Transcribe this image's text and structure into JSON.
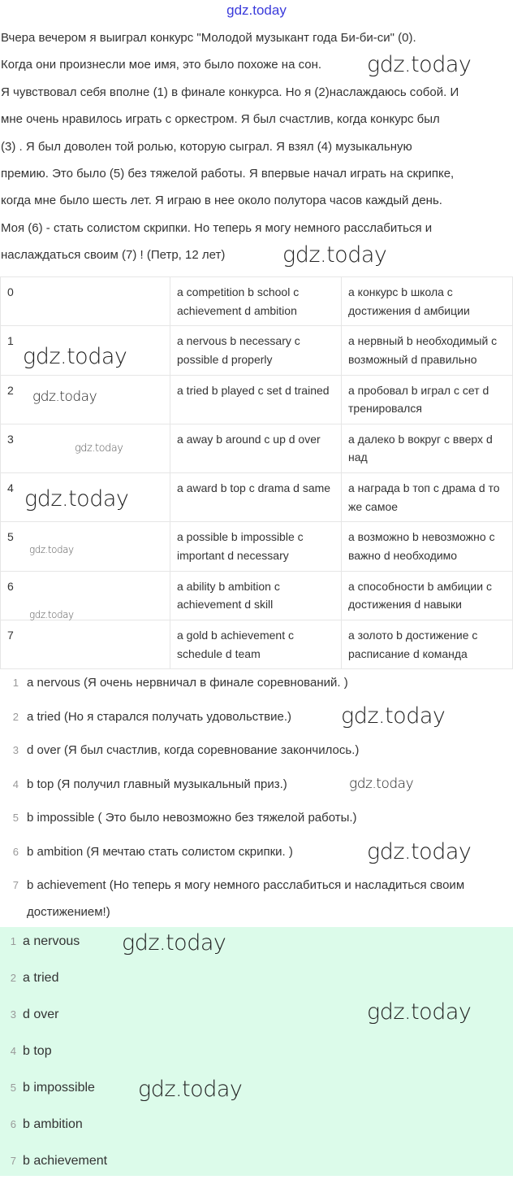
{
  "watermark": "gdz.today",
  "top_watermark": "gdz.today",
  "passage": "Вчера вечером я выиграл конкурс \"Молодой музыкант года Би-би-си\" (0). Когда они произнесли мое имя, это было похоже на сон. Я чувствовал себя вполне (1) в финале конкурса. Но я (2)наслаждаюсь собой. И мне очень нравилось играть с оркестром. Я был счастлив, когда конкурс был (3) . Я был доволен той ролью, которую сыграл. Я взял (4) музыкальную премию. Это было (5) без тяжелой работы. Я впервые начал играть на скрипке, когда мне было шесть лет. Я играю в нее около полутора часов каждый день. Моя (6) - стать солистом скрипки. Но теперь я могу немного расслабиться и наслаждаться своим (7) ! (Петр, 12 лет)",
  "passage_lines": [
    "Вчера вечером я выиграл конкурс \"Молодой музыкант года Би-би-си\" (0).",
    "Когда они произнесли мое имя, это было похоже на сон.",
    "Я чувствовал себя вполне (1) в финале конкурса. Но я (2)наслаждаюсь собой. И",
    "мне очень нравилось играть с оркестром. Я был счастлив, когда конкурс был",
    "(3) . Я был доволен той ролью, которую сыграл. Я взял (4) музыкальную",
    "премию. Это было (5) без тяжелой работы. Я впервые начал играть на скрипке,",
    "когда мне было шесть лет. Я играю в нее около полутора часов каждый день.",
    "Моя (6) - стать солистом скрипки. Но теперь я могу немного расслабиться и",
    "наслаждаться своим (7) ! (Петр, 12 лет)"
  ],
  "table": [
    [
      "0",
      "a competition b school c achievement d ambition",
      "a конкурс b школа c достижения d амбиции"
    ],
    [
      "1",
      "a nervous b necessary c possible d properly",
      "a нервный b необходимый c возможный d правильно"
    ],
    [
      "2",
      "a tried b played c set d trained",
      "a пробовал b играл c сет d тренировался"
    ],
    [
      "3",
      "a away b around c up d over",
      "a далеко b вокруг c вверх d над"
    ],
    [
      "4",
      "a award b top c drama d same",
      "a награда b топ c драма d то же самое"
    ],
    [
      "5",
      "a possible b impossible c important d necessary",
      "a возможно b невозможно c важно d необходимо"
    ],
    [
      "6",
      "a ability b ambition c achievement d skill",
      "a способности b амбиции c достижения d навыки"
    ],
    [
      "7",
      "a gold b achievement c schedule d team",
      "a золото b достижение c расписание d команда"
    ]
  ],
  "answers_translated": [
    {
      "n": "1",
      "text": "a nervous (Я очень нервничал в финале соревнований. )"
    },
    {
      "n": "2",
      "text": "a tried (Но я старался получать удовольствие.)"
    },
    {
      "n": "3",
      "text": "d over (Я был счастлив, когда соревнование закончилось.)"
    },
    {
      "n": "4",
      "text": "b top (Я получил главный музыкальный приз.)"
    },
    {
      "n": "5",
      "text": "b impossible ( Это было невозможно без тяжелой работы.)"
    },
    {
      "n": "6",
      "text": "b ambition (Я мечтаю стать солистом скрипки. )"
    },
    {
      "n": "7",
      "text": "b achievement (Но теперь я могу немного расслабиться и насладиться своим достижением!)"
    }
  ],
  "answers_short": [
    {
      "n": "1",
      "text": "a nervous"
    },
    {
      "n": "2",
      "text": "a tried"
    },
    {
      "n": "3",
      "text": "d over"
    },
    {
      "n": "4",
      "text": "b top"
    },
    {
      "n": "5",
      "text": "b impossible"
    },
    {
      "n": "6",
      "text": "b ambition"
    },
    {
      "n": "7",
      "text": "b achievement"
    }
  ],
  "colors": {
    "answer_box_bg": "#dcfbea",
    "top_watermark": "#3b3bdb"
  }
}
